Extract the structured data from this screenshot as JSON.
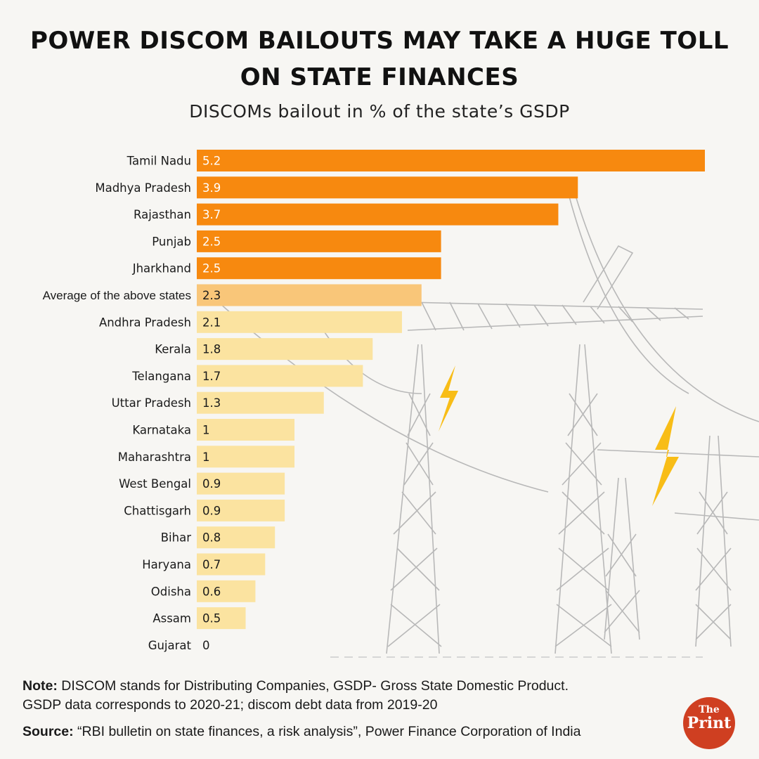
{
  "header": {
    "title_line1": "POWER DISCOM BAILOUTS MAY TAKE A HUGE TOLL",
    "title_line2": "ON STATE FINANCES",
    "subtitle": "DISCOMs bailout in % of the state’s GSDP"
  },
  "chart_data": {
    "type": "bar",
    "orientation": "horizontal",
    "title": "DISCOMs bailout in % of the state’s GSDP",
    "xlabel": "",
    "ylabel": "",
    "xlim": [
      0,
      5.2
    ],
    "categories": [
      "Tamil Nadu",
      "Madhya Pradesh",
      "Rajasthan",
      "Punjab",
      "Jharkhand",
      "Average of the above states",
      "Andhra Pradesh",
      "Kerala",
      "Telangana",
      "Uttar Pradesh",
      "Karnataka",
      "Maharashtra",
      "West Bengal",
      "Chattisgarh",
      "Bihar",
      "Haryana",
      "Odisha",
      "Assam",
      "Gujarat"
    ],
    "values": [
      5.2,
      3.9,
      3.7,
      2.5,
      2.5,
      2.3,
      2.1,
      1.8,
      1.7,
      1.3,
      1,
      1,
      0.9,
      0.9,
      0.8,
      0.7,
      0.6,
      0.5,
      0
    ],
    "value_labels": [
      "5.2",
      "3.9",
      "3.7",
      "2.5",
      "2.5",
      "2.3",
      "2.1",
      "1.8",
      "1.7",
      "1.3",
      "1",
      "1",
      "0.9",
      "0.9",
      "0.8",
      "0.7",
      "0.6",
      "0.5",
      "0"
    ],
    "groups": [
      "high",
      "high",
      "high",
      "high",
      "high",
      "average",
      "low",
      "low",
      "low",
      "low",
      "low",
      "low",
      "low",
      "low",
      "low",
      "low",
      "low",
      "low",
      "low"
    ],
    "colors": {
      "high": "#f7890f",
      "average": "#f9c679",
      "low": "#fbe3a0"
    }
  },
  "footer": {
    "note_label": "Note:",
    "note_text": "DISCOM stands for Distributing Companies, GSDP- Gross State Domestic Product.",
    "note_text2": "GSDP data corresponds to 2020-21; discom debt data from 2019-20",
    "source_label": "Source:",
    "source_text": "“RBI bulletin on state finances, a risk analysis”, Power Finance Corporation of India"
  },
  "logo": {
    "the": "The",
    "print": "Print"
  }
}
